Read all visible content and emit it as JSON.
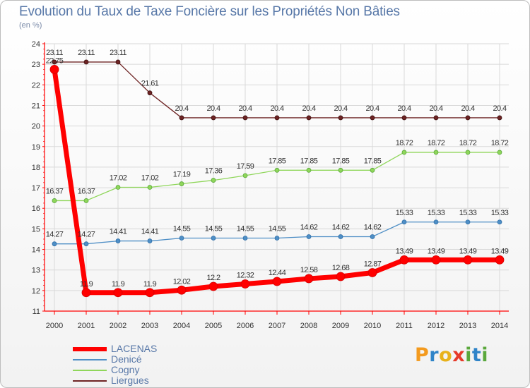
{
  "title": "Evolution du Taux de Taxe Foncière sur les Propriétés Non Bâties",
  "subtitle": "(en %)",
  "logo": [
    "P",
    "r",
    "o",
    "x",
    "i",
    "t",
    "i"
  ],
  "colors": {
    "LACENAS": "#ff0000",
    "Denicé": "#4f8fc6",
    "Cogny": "#8fd65a",
    "Liergues": "#6e2424",
    "grid": "#d9d9d9",
    "axis": "#ff0000"
  },
  "legend": [
    "LACENAS",
    "Denicé",
    "Cogny",
    "Liergues"
  ],
  "chart_data": {
    "type": "line",
    "title": "Evolution du Taux de Taxe Foncière sur les Propriétés Non Bâties",
    "ylabel": "(en %)",
    "xlabel": "",
    "ylim": [
      11,
      24
    ],
    "yticks": [
      11,
      12,
      13,
      14,
      15,
      16,
      17,
      18,
      19,
      20,
      21,
      22,
      23,
      24
    ],
    "categories": [
      "2000",
      "2001",
      "2002",
      "2003",
      "2004",
      "2005",
      "2006",
      "2007",
      "2008",
      "2009",
      "2010",
      "2011",
      "2012",
      "2013",
      "2014"
    ],
    "grid": true,
    "legend_position": "bottom-left",
    "series": [
      {
        "name": "Liergues",
        "values": [
          23.11,
          23.11,
          23.11,
          21.61,
          20.4,
          20.4,
          20.4,
          20.4,
          20.4,
          20.4,
          20.4,
          20.4,
          20.4,
          20.4,
          20.4
        ],
        "labels": [
          "23.11",
          "23.11",
          "23.11",
          "21.61",
          "20.4",
          "20.4",
          "20.4",
          "20.4",
          "20.4",
          "20.4",
          "20.4",
          "20.4",
          "20.4",
          "20.4",
          "20.4"
        ]
      },
      {
        "name": "Cogny",
        "values": [
          16.37,
          16.37,
          17.02,
          17.02,
          17.19,
          17.36,
          17.59,
          17.85,
          17.85,
          17.85,
          17.85,
          18.72,
          18.72,
          18.72,
          18.72
        ],
        "labels": [
          "16.37",
          "16.37",
          "17.02",
          "17.02",
          "17.19",
          "17.36",
          "17.59",
          "17.85",
          "17.85",
          "17.85",
          "17.85",
          "18.72",
          "18.72",
          "18.72",
          "18.72"
        ]
      },
      {
        "name": "Denicé",
        "values": [
          14.27,
          14.27,
          14.41,
          14.41,
          14.55,
          14.55,
          14.55,
          14.55,
          14.62,
          14.62,
          14.62,
          15.33,
          15.33,
          15.33,
          15.33
        ],
        "labels": [
          "14.27",
          "14.27",
          "14.41",
          "14.41",
          "14.55",
          "14.55",
          "14.55",
          "14.55",
          "14.62",
          "14.62",
          "14.62",
          "15.33",
          "15.33",
          "15.33",
          "15.33"
        ]
      },
      {
        "name": "LACENAS",
        "values": [
          22.75,
          11.9,
          11.9,
          11.9,
          12.02,
          12.2,
          12.32,
          12.44,
          12.58,
          12.68,
          12.87,
          13.49,
          13.49,
          13.49,
          13.49
        ],
        "labels": [
          "22.75",
          "11.9",
          "11.9",
          "11.9",
          "12.02",
          "12.2",
          "12.32",
          "12.44",
          "12.58",
          "12.68",
          "12.87",
          "13.49",
          "13.49",
          "13.49",
          "13.49"
        ]
      }
    ]
  }
}
